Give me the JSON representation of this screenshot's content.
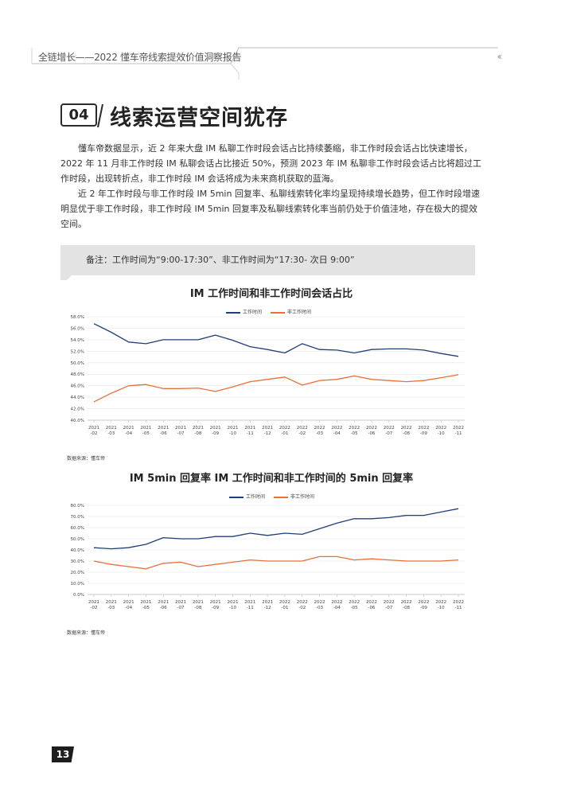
{
  "header": {
    "title": "全链增长——2022 懂车帝线索提效价值洞察报告",
    "chevron": "‹‹"
  },
  "section": {
    "number": "04",
    "title": "线索运营空间犹存"
  },
  "paragraphs": [
    "懂车帝数据显示，近 2 年来大盘 IM 私聊工作时段会话占比持续萎缩，非工作时段会话占比快速增长，2022 年 11 月非工作时段 IM 私聊会话占比接近 50%，预测 2023 年 IM 私聊非工作时段会话占比将超过工作时段，出现转折点，非工作时段 IM 会话将成为未来商机获取的蓝海。",
    "近 2 年工作时段与非工作时段 IM 5min 回复率、私聊线索转化率均呈现持续增长趋势，但工作时段增速明显优于非工作时段，非工作时段 IM 5min 回复率及私聊线索转化率当前仍处于价值洼地，存在极大的提效空间。"
  ],
  "note": "备注：工作时间为“9:00-17:30”、非工作时间为“17:30- 次日 9:00”",
  "colors": {
    "work": "#1f3f7a",
    "nonwork": "#e8703a",
    "grid": "#e6e6e6",
    "note_bg": "#e3e3e3"
  },
  "page_number": "13",
  "chart_data": [
    {
      "type": "line",
      "title": "IM 工作时间和非工作时间会话占比",
      "source": "数据来源：懂车帝",
      "x_labels": [
        [
          "2021",
          "-02"
        ],
        [
          "2021",
          "-03"
        ],
        [
          "2021",
          "-04"
        ],
        [
          "2021",
          "-05"
        ],
        [
          "2021",
          "-06"
        ],
        [
          "2021",
          "-07"
        ],
        [
          "2021",
          "-08"
        ],
        [
          "2021",
          "-09"
        ],
        [
          "2021",
          "-10"
        ],
        [
          "2021",
          "-11"
        ],
        [
          "2021",
          "-12"
        ],
        [
          "2022",
          "-01"
        ],
        [
          "2022",
          "-02"
        ],
        [
          "2022",
          "-03"
        ],
        [
          "2022",
          "-04"
        ],
        [
          "2022",
          "-05"
        ],
        [
          "2022",
          "-06"
        ],
        [
          "2022",
          "-07"
        ],
        [
          "2022",
          "-08"
        ],
        [
          "2022",
          "-09"
        ],
        [
          "2022",
          "-10"
        ],
        [
          "2022",
          "-11"
        ]
      ],
      "y_ticks": [
        "58.0%",
        "56.0%",
        "54.0%",
        "52.0%",
        "50.0%",
        "48.0%",
        "46.0%",
        "44.0%",
        "42.0%",
        "40.0%"
      ],
      "ylim": [
        40,
        58
      ],
      "series": [
        {
          "name": "工作时间",
          "color": "#1f3f7a",
          "values": [
            56.8,
            55.3,
            53.6,
            53.3,
            54.0,
            54.0,
            54.0,
            54.8,
            53.9,
            52.8,
            52.3,
            51.7,
            53.3,
            52.3,
            52.2,
            51.7,
            52.3,
            52.4,
            52.4,
            52.2,
            51.6,
            51.1
          ]
        },
        {
          "name": "非工作时间",
          "color": "#e8703a",
          "values": [
            43.2,
            44.7,
            46.0,
            46.2,
            45.5,
            45.5,
            45.6,
            45.0,
            45.8,
            46.7,
            47.1,
            47.5,
            46.1,
            46.9,
            47.1,
            47.7,
            47.1,
            46.9,
            46.7,
            46.9,
            47.4,
            47.9
          ]
        }
      ]
    },
    {
      "type": "line",
      "title": "IM 5min 回复率 IM 工作时间和非工作时间的 5min 回复率",
      "source": "数据来源：懂车帝",
      "x_labels": [
        [
          "2021",
          "-02"
        ],
        [
          "2021",
          "-03"
        ],
        [
          "2021",
          "-04"
        ],
        [
          "2021",
          "-05"
        ],
        [
          "2021",
          "-06"
        ],
        [
          "2021",
          "-07"
        ],
        [
          "2021",
          "-08"
        ],
        [
          "2021",
          "-09"
        ],
        [
          "2021",
          "-10"
        ],
        [
          "2021",
          "-11"
        ],
        [
          "2021",
          "-12"
        ],
        [
          "2022",
          "-01"
        ],
        [
          "2022",
          "-02"
        ],
        [
          "2022",
          "-03"
        ],
        [
          "2022",
          "-04"
        ],
        [
          "2022",
          "-05"
        ],
        [
          "2022",
          "-06"
        ],
        [
          "2022",
          "-07"
        ],
        [
          "2022",
          "-08"
        ],
        [
          "2022",
          "-09"
        ],
        [
          "2022",
          "-10"
        ],
        [
          "2022",
          "-11"
        ]
      ],
      "y_ticks": [
        "80.0%",
        "70.0%",
        "60.0%",
        "50.0%",
        "40.0%",
        "30.0%",
        "20.0%",
        "10.0%",
        "0.0%"
      ],
      "ylim": [
        0,
        80
      ],
      "series": [
        {
          "name": "工作时间",
          "color": "#1f3f7a",
          "values": [
            42,
            41,
            42,
            45,
            51,
            50,
            50,
            52,
            52,
            55,
            53,
            55,
            54,
            59,
            64,
            68,
            68,
            69,
            71,
            71,
            74,
            77
          ]
        },
        {
          "name": "非工作时间",
          "color": "#e8703a",
          "values": [
            30,
            27,
            25,
            23,
            28,
            29,
            25,
            27,
            29,
            31,
            30,
            30,
            30,
            34,
            34,
            31,
            32,
            31,
            30,
            30,
            30,
            31
          ]
        }
      ]
    }
  ]
}
